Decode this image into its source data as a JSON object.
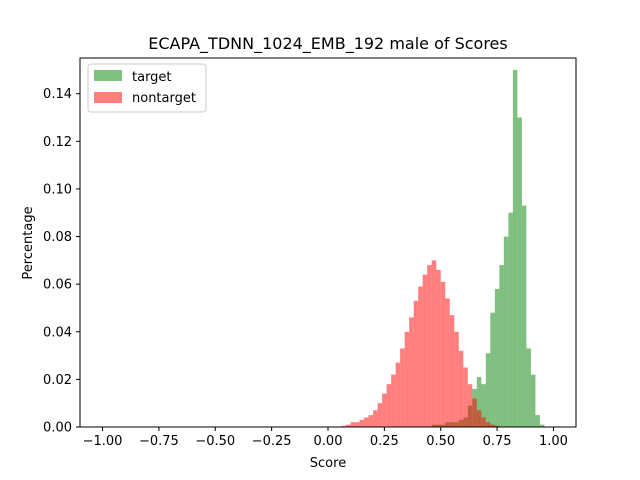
{
  "chart_data": {
    "type": "bar",
    "title": "ECAPA_TDNN_1024_EMB_192 male of Scores",
    "xlabel": "Score",
    "ylabel": "Percentage",
    "xlim": [
      -1.1,
      1.1
    ],
    "ylim": [
      0,
      0.155
    ],
    "xticks": [
      -1.0,
      -0.75,
      -0.5,
      -0.25,
      0.0,
      0.25,
      0.5,
      0.75,
      1.0
    ],
    "xtick_labels": [
      "−1.00",
      "−0.75",
      "−0.50",
      "−0.25",
      "0.00",
      "0.25",
      "0.50",
      "0.75",
      "1.00"
    ],
    "yticks": [
      0.0,
      0.02,
      0.04,
      0.06,
      0.08,
      0.1,
      0.12,
      0.14
    ],
    "ytick_labels": [
      "0.00",
      "0.02",
      "0.04",
      "0.06",
      "0.08",
      "0.10",
      "0.12",
      "0.14"
    ],
    "bin_width": 0.02,
    "legend_position": "top-left",
    "series": [
      {
        "name": "target",
        "color": "#008000",
        "opacity": 0.5,
        "bins": [
          [
            0.46,
            0.001
          ],
          [
            0.48,
            0.001
          ],
          [
            0.5,
            0.001
          ],
          [
            0.52,
            0.002
          ],
          [
            0.54,
            0.002
          ],
          [
            0.56,
            0.002
          ],
          [
            0.58,
            0.003
          ],
          [
            0.6,
            0.004
          ],
          [
            0.62,
            0.009
          ],
          [
            0.64,
            0.016
          ],
          [
            0.66,
            0.021
          ],
          [
            0.68,
            0.018
          ],
          [
            0.7,
            0.031
          ],
          [
            0.72,
            0.048
          ],
          [
            0.74,
            0.058
          ],
          [
            0.76,
            0.068
          ],
          [
            0.78,
            0.08
          ],
          [
            0.8,
            0.09
          ],
          [
            0.82,
            0.15
          ],
          [
            0.84,
            0.13
          ],
          [
            0.86,
            0.093
          ],
          [
            0.88,
            0.033
          ],
          [
            0.9,
            0.022
          ],
          [
            0.92,
            0.005
          ],
          [
            0.94,
            0.001
          ]
        ]
      },
      {
        "name": "nontarget",
        "color": "#ff0000",
        "opacity": 0.5,
        "bins": [
          [
            0.06,
            0.0005
          ],
          [
            0.08,
            0.001
          ],
          [
            0.1,
            0.002
          ],
          [
            0.12,
            0.002
          ],
          [
            0.14,
            0.003
          ],
          [
            0.16,
            0.004
          ],
          [
            0.18,
            0.005
          ],
          [
            0.2,
            0.007
          ],
          [
            0.22,
            0.01
          ],
          [
            0.24,
            0.014
          ],
          [
            0.26,
            0.018
          ],
          [
            0.28,
            0.022
          ],
          [
            0.3,
            0.027
          ],
          [
            0.32,
            0.033
          ],
          [
            0.34,
            0.04
          ],
          [
            0.36,
            0.046
          ],
          [
            0.38,
            0.053
          ],
          [
            0.4,
            0.059
          ],
          [
            0.42,
            0.064
          ],
          [
            0.44,
            0.068
          ],
          [
            0.46,
            0.07
          ],
          [
            0.48,
            0.066
          ],
          [
            0.5,
            0.061
          ],
          [
            0.52,
            0.054
          ],
          [
            0.54,
            0.047
          ],
          [
            0.56,
            0.04
          ],
          [
            0.58,
            0.032
          ],
          [
            0.6,
            0.025
          ],
          [
            0.62,
            0.018
          ],
          [
            0.64,
            0.012
          ],
          [
            0.66,
            0.007
          ],
          [
            0.68,
            0.004
          ],
          [
            0.7,
            0.002
          ],
          [
            0.72,
            0.001
          ],
          [
            0.74,
            0.0005
          ]
        ]
      }
    ]
  }
}
